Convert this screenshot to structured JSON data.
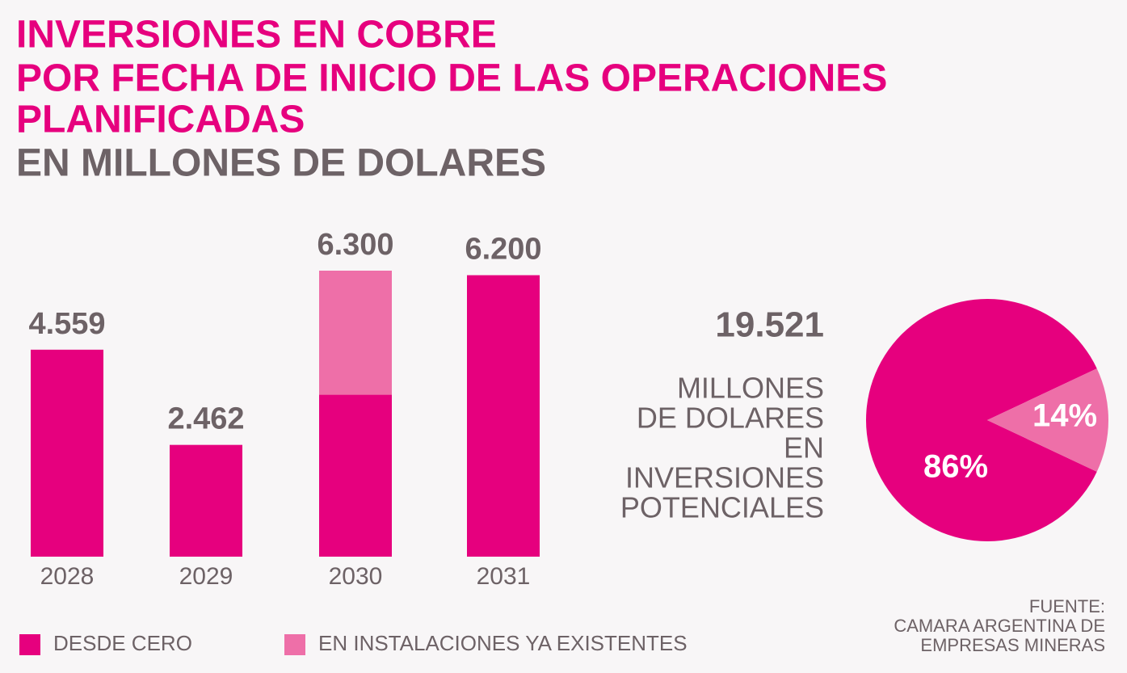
{
  "chart_data": [
    {
      "type": "bar",
      "title": [
        "INVERSIONES EN COBRE",
        "POR FECHA DE INICIO DE LAS OPERACIONES",
        "PLANIFICADAS"
      ],
      "subtitle": "EN MILLONES DE DOLARES",
      "categories": [
        "2028",
        "2029",
        "2030",
        "2031"
      ],
      "series": [
        {
          "name": "DESDE CERO",
          "color": "#e6007e",
          "values": [
            4559,
            2462,
            3567,
            6200
          ]
        },
        {
          "name": "EN INSTALACIONES YA EXISTENTES",
          "color": "#ee6fa8",
          "values": [
            null,
            null,
            2733,
            null
          ]
        }
      ],
      "totals": [
        4559,
        2462,
        6300,
        6200
      ],
      "total_labels": [
        "4.559",
        "2.462",
        "6.300",
        "6.200"
      ]
    },
    {
      "type": "pie",
      "total": 19521,
      "total_label": "19.521",
      "caption": [
        "MILLONES",
        "DE DOLARES",
        "EN",
        "INVERSIONES",
        "POTENCIALES"
      ],
      "values": [
        86,
        14
      ],
      "value_labels": [
        "86%",
        "14%"
      ],
      "colors": [
        "#e6007e",
        "#ee6fa8"
      ]
    }
  ],
  "source": [
    "FUENTE:",
    "CAMARA ARGENTINA DE",
    "EMPRESAS MINERAS"
  ]
}
